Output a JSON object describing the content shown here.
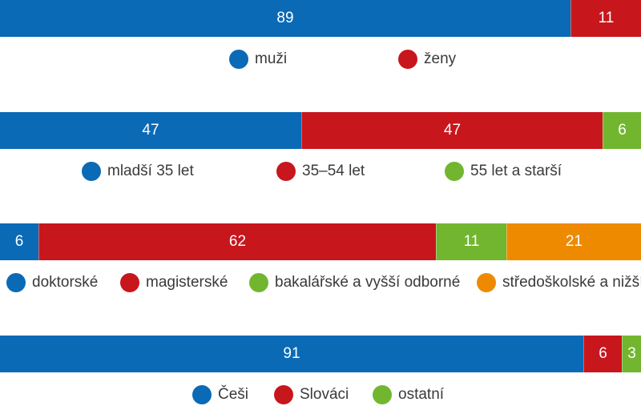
{
  "colors": {
    "blue": "#0a6ab6",
    "red": "#c8161d",
    "green": "#72b630",
    "orange": "#ee8a00"
  },
  "chart_data": [
    {
      "type": "bar",
      "stacked": true,
      "orientation": "horizontal",
      "total": 100,
      "series": [
        {
          "name": "muži",
          "value": 89,
          "color": "#0a6ab6"
        },
        {
          "name": "ženy",
          "value": 11,
          "color": "#c8161d"
        }
      ]
    },
    {
      "type": "bar",
      "stacked": true,
      "orientation": "horizontal",
      "total": 100,
      "series": [
        {
          "name": "mladší 35 let",
          "value": 47,
          "color": "#0a6ab6"
        },
        {
          "name": "35–54 let",
          "value": 47,
          "color": "#c8161d"
        },
        {
          "name": "55 let a starší",
          "value": 6,
          "color": "#72b630"
        }
      ]
    },
    {
      "type": "bar",
      "stacked": true,
      "orientation": "horizontal",
      "total": 100,
      "series": [
        {
          "name": "doktorské",
          "value": 6,
          "color": "#0a6ab6"
        },
        {
          "name": "magisterské",
          "value": 62,
          "color": "#c8161d"
        },
        {
          "name": "bakalářské a vyšší odborné",
          "value": 11,
          "color": "#72b630"
        },
        {
          "name": "středoškolské a nižší",
          "value": 21,
          "color": "#ee8a00"
        }
      ]
    },
    {
      "type": "bar",
      "stacked": true,
      "orientation": "horizontal",
      "total": 100,
      "series": [
        {
          "name": "Češi",
          "value": 91,
          "color": "#0a6ab6"
        },
        {
          "name": "Slováci",
          "value": 6,
          "color": "#c8161d"
        },
        {
          "name": "ostatní",
          "value": 3,
          "color": "#72b630"
        }
      ]
    }
  ]
}
